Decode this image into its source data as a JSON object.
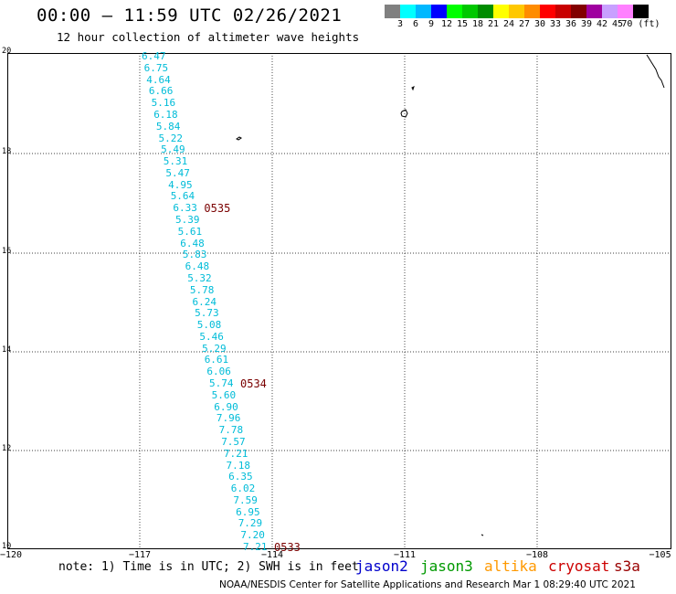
{
  "header": {
    "title": "00:00 – 11:59 UTC 02/26/2021",
    "subtitle": "12 hour collection of altimeter wave heights"
  },
  "legend": {
    "colors": [
      "#808080",
      "#00ffff",
      "#00b8ff",
      "#0000ff",
      "#00ff00",
      "#00c800",
      "#008c00",
      "#ffff00",
      "#ffc800",
      "#ff8c00",
      "#ff0000",
      "#c80000",
      "#820000",
      "#a000a0",
      "#c8a0ff",
      "#ff80ff",
      "#000000"
    ],
    "labels": [
      "3",
      "6",
      "9",
      "12",
      "15",
      "18",
      "21",
      "24",
      "27",
      "30",
      "33",
      "36",
      "39",
      "42",
      "45",
      "70 (ft)"
    ]
  },
  "axes": {
    "y_ticks": [
      "20",
      "18",
      "16",
      "14",
      "12",
      "10"
    ],
    "x_ticks": [
      "−120",
      "−117",
      "−114",
      "−111",
      "−108",
      "−105"
    ]
  },
  "wave_heights": [
    "6.47",
    "6.75",
    "4.64",
    "6.66",
    "5.16",
    "6.18",
    "5.84",
    "5.22",
    "5.49",
    "5.31",
    "5.47",
    "4.95",
    "5.64",
    "6.33",
    "5.39",
    "5.61",
    "6.48",
    "5.83",
    "6.48",
    "5.32",
    "5.78",
    "6.24",
    "5.73",
    "5.08",
    "5.46",
    "5.29",
    "6.61",
    "6.06",
    "5.74",
    "5.60",
    "6.90",
    "7.96",
    "7.78",
    "7.57",
    "7.21",
    "7.18",
    "6.35",
    "6.02",
    "7.59",
    "6.95",
    "7.29",
    "7.20",
    "7.21"
  ],
  "pass_labels": [
    {
      "text": "0535",
      "index": 13
    },
    {
      "text": "0534",
      "index": 28
    },
    {
      "text": "0533",
      "index": 42
    }
  ],
  "footer": {
    "note": "note: 1) Time is in UTC; 2) SWH is in feet",
    "satellites": [
      {
        "name": "jason2",
        "color": "#0000cc"
      },
      {
        "name": "jason3",
        "color": "#009900"
      },
      {
        "name": "altika",
        "color": "#ff9900"
      },
      {
        "name": "cryosat",
        "color": "#cc0000"
      },
      {
        "name": "s3a",
        "color": "#990000"
      }
    ],
    "credit": "NOAA/NESDIS Center for Satellite Applications and Research   Mar  1 08:29:40 UTC 2021"
  }
}
